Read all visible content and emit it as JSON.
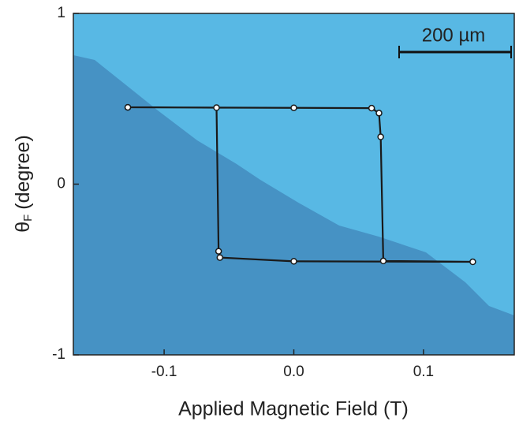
{
  "chart_data": {
    "type": "line",
    "x_label": "Applied Magnetic Field (T)",
    "y_label": {
      "symbol": "θ",
      "subscript": "F",
      "unit": "(degree)"
    },
    "annotation": "200 µm",
    "xlim": [
      -0.17,
      0.17
    ],
    "xticks": [
      -0.1,
      {
        "value": 0,
        "label": "0.0"
      },
      0.1
    ],
    "ylim": [
      -1,
      1
    ],
    "yticks": [
      -1,
      0,
      1
    ],
    "series": [
      {
        "color": "#1a1a1a",
        "x": [
          -0.128,
          0.0,
          0.06,
          0.0657,
          0.067,
          0.069,
          0.138,
          0.0,
          -0.057,
          -0.058,
          -0.0596,
          -0.128
        ],
        "values": [
          0.45,
          0.447,
          0.445,
          0.416,
          0.277,
          -0.45,
          -0.455,
          -0.452,
          -0.43,
          -0.393,
          0.448,
          0.45
        ]
      }
    ]
  }
}
